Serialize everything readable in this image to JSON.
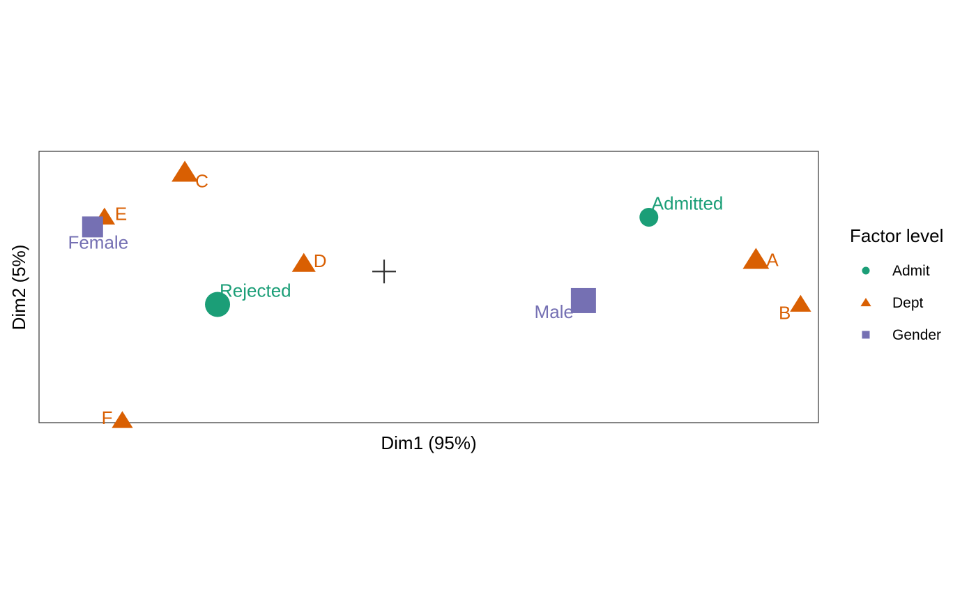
{
  "chart_data": {
    "type": "scatter",
    "xlabel": "Dim1 (95%)",
    "ylabel": "Dim2 (5%)",
    "xlim": [
      -1.16,
      1.46
    ],
    "ylim": [
      -0.78,
      0.62
    ],
    "grid": false,
    "legend_position": "right",
    "legend": {
      "title": "Factor level",
      "entries": [
        {
          "name": "Admit",
          "shape": "circle",
          "color": "#1B9E77"
        },
        {
          "name": "Dept",
          "shape": "triangle",
          "color": "#D95F02"
        },
        {
          "name": "Gender",
          "shape": "square",
          "color": "#7570B3"
        }
      ]
    },
    "origin_marker": {
      "x": 0,
      "y": 0
    },
    "points": [
      {
        "label": "Admitted",
        "group": "Admit",
        "x": 0.89,
        "y": 0.28,
        "size": 0.9
      },
      {
        "label": "Rejected",
        "group": "Admit",
        "x": -0.56,
        "y": -0.17,
        "size": 1.2
      },
      {
        "label": "A",
        "group": "Dept",
        "x": 1.25,
        "y": 0.06,
        "size": 1.0
      },
      {
        "label": "B",
        "group": "Dept",
        "x": 1.4,
        "y": -0.17,
        "size": 0.8
      },
      {
        "label": "C",
        "group": "Dept",
        "x": -0.67,
        "y": 0.51,
        "size": 1.0
      },
      {
        "label": "D",
        "group": "Dept",
        "x": -0.27,
        "y": 0.04,
        "size": 0.9
      },
      {
        "label": "E",
        "group": "Dept",
        "x": -0.94,
        "y": 0.28,
        "size": 0.8
      },
      {
        "label": "F",
        "group": "Dept",
        "x": -0.88,
        "y": -0.77,
        "size": 0.8
      },
      {
        "label": "Female",
        "group": "Gender",
        "x": -0.98,
        "y": 0.23,
        "size": 1.0
      },
      {
        "label": "Male",
        "group": "Gender",
        "x": 0.67,
        "y": -0.15,
        "size": 1.2
      }
    ]
  }
}
